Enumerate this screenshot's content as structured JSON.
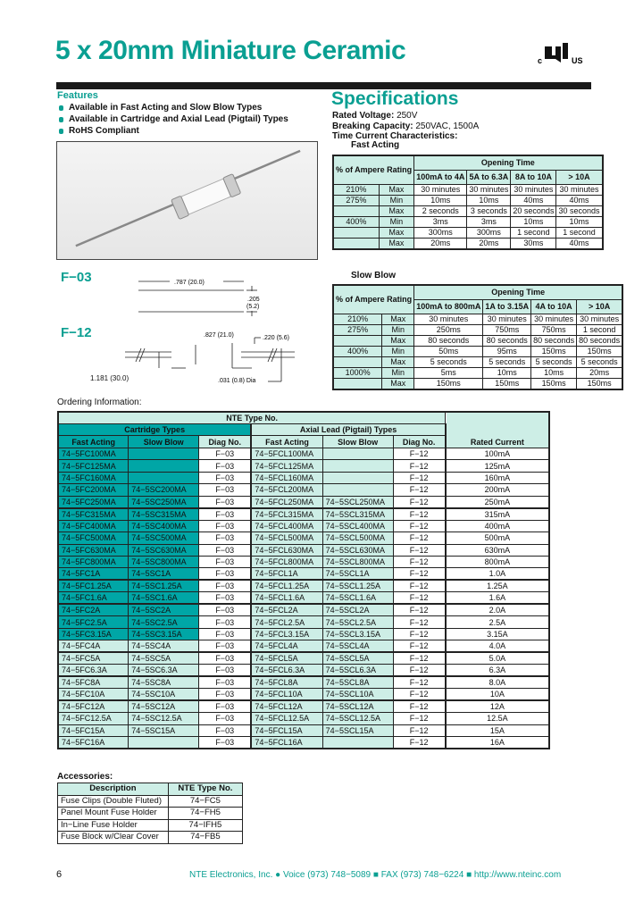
{
  "title": "5 x 20mm Miniature Ceramic",
  "logo": {
    "left": "c",
    "right": "us",
    "name": "UL recognized mark"
  },
  "features": {
    "heading": "Features",
    "items": [
      "Available in Fast Acting and Slow Blow Types",
      "Available in Cartridge and Axial Lead (Pigtail) Types",
      "RoHS Compliant"
    ]
  },
  "specifications": {
    "heading": "Specifications",
    "rated_voltage_label": "Rated Voltage:",
    "rated_voltage": "250V",
    "breaking_capacity_label": "Breaking Capacity:",
    "breaking_capacity": "250VAC, 1500A",
    "time_current_label": "Time Current Characteristics:",
    "fast_acting": {
      "label": "Fast Acting",
      "pct_header": "% of Ampere Rating",
      "opening_time": "Opening Time",
      "columns": [
        "100mA to 4A",
        "5A to 6.3A",
        "8A to 10A",
        "> 10A"
      ],
      "rows": [
        {
          "pct": "210%",
          "kind": "Max",
          "values": [
            "30 minutes",
            "30 minutes",
            "30 minutes",
            "30 minutes"
          ]
        },
        {
          "pct": "275%",
          "kind": "Min",
          "values": [
            "10ms",
            "10ms",
            "40ms",
            "40ms"
          ]
        },
        {
          "pct": "",
          "kind": "Max",
          "values": [
            "2 seconds",
            "3 seconds",
            "20 seconds",
            "30 seconds"
          ]
        },
        {
          "pct": "400%",
          "kind": "Min",
          "values": [
            "3ms",
            "3ms",
            "10ms",
            "10ms"
          ]
        },
        {
          "pct": "",
          "kind": "Max",
          "values": [
            "300ms",
            "300ms",
            "1 second",
            "1 second"
          ]
        },
        {
          "pct": "",
          "kind": "Max",
          "values": [
            "20ms",
            "20ms",
            "30ms",
            "40ms"
          ]
        }
      ]
    },
    "slow_blow": {
      "label": "Slow Blow",
      "pct_header": "% of Ampere Rating",
      "opening_time": "Opening Time",
      "columns": [
        "100mA to 800mA",
        "1A to 3.15A",
        "4A to 10A",
        "> 10A"
      ],
      "rows": [
        {
          "pct": "210%",
          "kind": "Max",
          "values": [
            "30 minutes",
            "30 minutes",
            "30 minutes",
            "30 minutes"
          ]
        },
        {
          "pct": "275%",
          "kind": "Min",
          "values": [
            "250ms",
            "750ms",
            "750ms",
            "1 second"
          ]
        },
        {
          "pct": "",
          "kind": "Max",
          "values": [
            "80 seconds",
            "80 seconds",
            "80 seconds",
            "80 seconds"
          ]
        },
        {
          "pct": "400%",
          "kind": "Min",
          "values": [
            "50ms",
            "95ms",
            "150ms",
            "150ms"
          ]
        },
        {
          "pct": "",
          "kind": "Max",
          "values": [
            "5 seconds",
            "5 seconds",
            "5 seconds",
            "5 seconds"
          ]
        },
        {
          "pct": "1000%",
          "kind": "Min",
          "values": [
            "5ms",
            "10ms",
            "10ms",
            "20ms"
          ]
        },
        {
          "pct": "",
          "kind": "Max",
          "values": [
            "150ms",
            "150ms",
            "150ms",
            "150ms"
          ]
        }
      ]
    }
  },
  "diagrams": {
    "f03": {
      "label": "F−03",
      "length": ".787 (20.0)",
      "dia_top": ".205",
      "dia_bottom": "(5.2)"
    },
    "f12": {
      "label": "F−12",
      "body": ".827 (21.0)",
      "lead": "1.181 (30.0)",
      "body_dia": ".220 (5.6)",
      "lead_dia": ".031 (0.8) Dia"
    }
  },
  "ordering": {
    "heading": "Ordering Information:",
    "nte_header": "NTE Type No.",
    "cartridge_header": "Cartridge Types",
    "axial_header": "Axial Lead (Pigtail) Types",
    "columns": [
      "Fast Acting",
      "Slow Blow",
      "Diag No.",
      "Fast Acting",
      "Slow Blow",
      "Diag No.",
      "Rated Current"
    ],
    "rows": [
      [
        "74−5FC100MA",
        "",
        "F−03",
        "74−5FCL100MA",
        "",
        "F−12",
        "100mA"
      ],
      [
        "74−5FC125MA",
        "",
        "F−03",
        "74−5FCL125MA",
        "",
        "F−12",
        "125mA"
      ],
      [
        "74−5FC160MA",
        "",
        "F−03",
        "74−5FCL160MA",
        "",
        "F−12",
        "160mA"
      ],
      [
        "74−5FC200MA",
        "74−5SC200MA",
        "F−03",
        "74−5FCL200MA",
        "",
        "F−12",
        "200mA"
      ],
      [
        "74−5FC250MA",
        "74−5SC250MA",
        "F−03",
        "74−5FCL250MA",
        "74−5SCL250MA",
        "F−12",
        "250mA"
      ],
      [
        "74−5FC315MA",
        "74−5SC315MA",
        "F−03",
        "74−5FCL315MA",
        "74−5SCL315MA",
        "F−12",
        "315mA"
      ],
      [
        "74−5FC400MA",
        "74−5SC400MA",
        "F−03",
        "74−5FCL400MA",
        "74−5SCL400MA",
        "F−12",
        "400mA"
      ],
      [
        "74−5FC500MA",
        "74−5SC500MA",
        "F−03",
        "74−5FCL500MA",
        "74−5SCL500MA",
        "F−12",
        "500mA"
      ],
      [
        "74−5FC630MA",
        "74−5SC630MA",
        "F−03",
        "74−5FCL630MA",
        "74−5SCL630MA",
        "F−12",
        "630mA"
      ],
      [
        "74−5FC800MA",
        "74−5SC800MA",
        "F−03",
        "74−5FCL800MA",
        "74−5SCL800MA",
        "F−12",
        "800mA"
      ],
      [
        "74−5FC1A",
        "74−5SC1A",
        "F−03",
        "74−5FCL1A",
        "74−5SCL1A",
        "F−12",
        "1.0A"
      ],
      [
        "74−5FC1.25A",
        "74−5SC1.25A",
        "F−03",
        "74−5FCL1.25A",
        "74−5SCL1.25A",
        "F−12",
        "1.25A"
      ],
      [
        "74−5FC1.6A",
        "74−5SC1.6A",
        "F−03",
        "74−5FCL1.6A",
        "74−5SCL1.6A",
        "F−12",
        "1.6A"
      ],
      [
        "74−5FC2A",
        "74−5SC2A",
        "F−03",
        "74−5FCL2A",
        "74−5SCL2A",
        "F−12",
        "2.0A"
      ],
      [
        "74−5FC2.5A",
        "74−5SC2.5A",
        "F−03",
        "74−5FCL2.5A",
        "74−5SCL2.5A",
        "F−12",
        "2.5A"
      ],
      [
        "74−5FC3.15A",
        "74−5SC3.15A",
        "F−03",
        "74−5FCL3.15A",
        "74−5SCL3.15A",
        "F−12",
        "3.15A"
      ],
      [
        "74−5FC4A",
        "74−5SC4A",
        "F−03",
        "74−5FCL4A",
        "74−5SCL4A",
        "F−12",
        "4.0A"
      ],
      [
        "74−5FC5A",
        "74−5SC5A",
        "F−03",
        "74−5FCL5A",
        "74−5SCL5A",
        "F−12",
        "5.0A"
      ],
      [
        "74−5FC6.3A",
        "74−5SC6.3A",
        "F−03",
        "74−5FCL6.3A",
        "74−5SCL6.3A",
        "F−12",
        "6.3A"
      ],
      [
        "74−5FC8A",
        "74−5SC8A",
        "F−03",
        "74−5FCL8A",
        "74−5SCL8A",
        "F−12",
        "8.0A"
      ],
      [
        "74−5FC10A",
        "74−5SC10A",
        "F−03",
        "74−5FCL10A",
        "74−5SCL10A",
        "F−12",
        "10A"
      ],
      [
        "74−5FC12A",
        "74−5SC12A",
        "F−03",
        "74−5FCL12A",
        "74−5SCL12A",
        "F−12",
        "12A"
      ],
      [
        "74−5FC12.5A",
        "74−5SC12.5A",
        "F−03",
        "74−5FCL12.5A",
        "74−5SCL12.5A",
        "F−12",
        "12.5A"
      ],
      [
        "74−5FC15A",
        "74−5SC15A",
        "F−03",
        "74−5FCL15A",
        "74−5SCL15A",
        "F−12",
        "15A"
      ],
      [
        "74−5FC16A",
        "",
        "F−03",
        "74−5FCL16A",
        "",
        "F−12",
        "16A"
      ]
    ]
  },
  "accessories": {
    "heading": "Accessories:",
    "columns": [
      "Description",
      "NTE Type No."
    ],
    "rows": [
      [
        "Fuse Clips (Double Fluted)",
        "74−FC5"
      ],
      [
        "Panel Mount Fuse Holder",
        "74−FH5"
      ],
      [
        "In−Line Fuse Holder",
        "74−IFH5"
      ],
      [
        "Fuse Block w/Clear Cover",
        "74−FB5"
      ]
    ]
  },
  "footer": {
    "page_number": "6",
    "company": "NTE Electronics, Inc.",
    "voice": "Voice (973) 748−5089",
    "fax": "FAX (973) 748−6224",
    "url": "http://www.nteinc.com"
  },
  "colors": {
    "accent": "#0a9f92",
    "dark_teal_cell": "#00a6a6",
    "light_teal_cell": "#cdeee6"
  }
}
